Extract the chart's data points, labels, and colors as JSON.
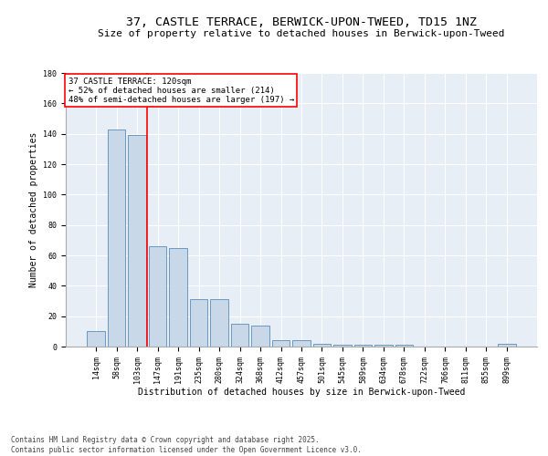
{
  "title": "37, CASTLE TERRACE, BERWICK-UPON-TWEED, TD15 1NZ",
  "subtitle": "Size of property relative to detached houses in Berwick-upon-Tweed",
  "xlabel": "Distribution of detached houses by size in Berwick-upon-Tweed",
  "ylabel": "Number of detached properties",
  "categories": [
    "14sqm",
    "58sqm",
    "103sqm",
    "147sqm",
    "191sqm",
    "235sqm",
    "280sqm",
    "324sqm",
    "368sqm",
    "412sqm",
    "457sqm",
    "501sqm",
    "545sqm",
    "589sqm",
    "634sqm",
    "678sqm",
    "722sqm",
    "766sqm",
    "811sqm",
    "855sqm",
    "899sqm"
  ],
  "values": [
    10,
    143,
    139,
    66,
    65,
    31,
    31,
    15,
    14,
    4,
    4,
    2,
    1,
    1,
    1,
    1,
    0,
    0,
    0,
    0,
    2
  ],
  "bar_color": "#c8d8e8",
  "bar_edge_color": "#5b8db8",
  "red_line_x": 2.5,
  "annotation_text": "37 CASTLE TERRACE: 120sqm\n← 52% of detached houses are smaller (214)\n48% of semi-detached houses are larger (197) →",
  "annotation_box_color": "white",
  "annotation_box_edge_color": "red",
  "red_line_color": "red",
  "background_color": "#e8eef5",
  "ylim": [
    0,
    180
  ],
  "yticks": [
    0,
    20,
    40,
    60,
    80,
    100,
    120,
    140,
    160,
    180
  ],
  "footnote": "Contains HM Land Registry data © Crown copyright and database right 2025.\nContains public sector information licensed under the Open Government Licence v3.0.",
  "title_fontsize": 9.5,
  "subtitle_fontsize": 8,
  "label_fontsize": 7,
  "tick_fontsize": 6,
  "annot_fontsize": 6.5,
  "footnote_fontsize": 5.5
}
